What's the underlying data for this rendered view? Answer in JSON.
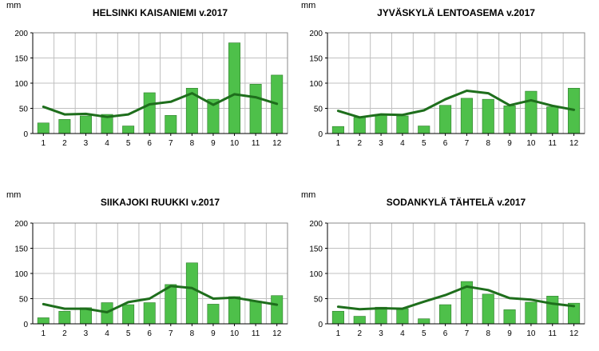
{
  "colors": {
    "bar_fill": "#4ec04a",
    "bar_stroke": "#2f7d2c",
    "line": "#1e6e1c",
    "grid": "#c0c0c0",
    "axis": "#000000"
  },
  "chart_data": [
    {
      "type": "bar",
      "title": "HELSINKI KAISANIEMI v.2017",
      "ylabel": "mm",
      "categories": [
        "1",
        "2",
        "3",
        "4",
        "5",
        "6",
        "7",
        "8",
        "9",
        "10",
        "11",
        "12"
      ],
      "ylim": [
        0,
        200
      ],
      "yticks": [
        0,
        50,
        100,
        150,
        200
      ],
      "grid": true,
      "series": [
        {
          "values": [
            21,
            28,
            35,
            38,
            15,
            81,
            36,
            90,
            68,
            180,
            98,
            116
          ]
        },
        {
          "values": [
            53,
            38,
            39,
            33,
            38,
            58,
            63,
            80,
            57,
            78,
            72,
            59
          ]
        }
      ]
    },
    {
      "type": "bar",
      "title": "JYVÄSKYLÄ LENTOASEMA v.2017",
      "ylabel": "mm",
      "categories": [
        "1",
        "2",
        "3",
        "4",
        "5",
        "6",
        "7",
        "8",
        "9",
        "10",
        "11",
        "12"
      ],
      "ylim": [
        0,
        200
      ],
      "yticks": [
        0,
        50,
        100,
        150,
        200
      ],
      "grid": true,
      "series": [
        {
          "values": [
            14,
            32,
            38,
            35,
            15,
            56,
            70,
            68,
            55,
            84,
            53,
            90
          ]
        },
        {
          "values": [
            45,
            32,
            38,
            37,
            46,
            68,
            85,
            80,
            56,
            66,
            55,
            47
          ]
        }
      ]
    },
    {
      "type": "bar",
      "title": "SIIKAJOKI RUUKKI v.2017",
      "ylabel": "mm",
      "categories": [
        "1",
        "2",
        "3",
        "4",
        "5",
        "6",
        "7",
        "8",
        "9",
        "10",
        "11",
        "12"
      ],
      "ylim": [
        0,
        200
      ],
      "yticks": [
        0,
        50,
        100,
        150,
        200
      ],
      "grid": true,
      "series": [
        {
          "values": [
            12,
            25,
            32,
            42,
            38,
            42,
            78,
            121,
            39,
            54,
            45,
            56
          ]
        },
        {
          "values": [
            39,
            30,
            30,
            23,
            43,
            50,
            75,
            71,
            50,
            52,
            45,
            38
          ]
        }
      ]
    },
    {
      "type": "bar",
      "title": "SODANKYLÄ TÄHTELÄ v.2017",
      "ylabel": "mm",
      "categories": [
        "1",
        "2",
        "3",
        "4",
        "5",
        "6",
        "7",
        "8",
        "9",
        "10",
        "11",
        "12"
      ],
      "ylim": [
        0,
        200
      ],
      "yticks": [
        0,
        50,
        100,
        150,
        200
      ],
      "grid": true,
      "series": [
        {
          "values": [
            25,
            15,
            33,
            30,
            10,
            38,
            84,
            59,
            28,
            43,
            55,
            41
          ]
        },
        {
          "values": [
            34,
            29,
            31,
            30,
            44,
            57,
            74,
            67,
            51,
            48,
            40,
            35
          ]
        }
      ]
    }
  ]
}
